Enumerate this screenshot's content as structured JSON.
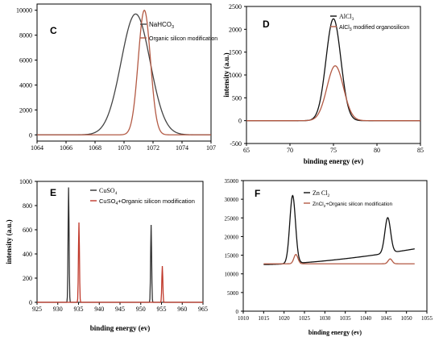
{
  "chart_data": [
    {
      "panel": "C",
      "type": "line",
      "xlabel": "",
      "ylabel": "",
      "xlim": [
        1064,
        1076
      ],
      "ylim": [
        -500,
        10500
      ],
      "x_ticks": [
        "1064",
        "1066",
        "1068",
        "1070",
        "1072",
        "1074",
        "107"
      ],
      "y_ticks": [
        "0",
        "2000",
        "4000",
        "6000",
        "8000",
        "10000"
      ],
      "legend_position": "top-right",
      "series": [
        {
          "name": "NaHCO3",
          "color": "#444444",
          "peaks": [
            {
              "center": 1070.8,
              "height": 9700,
              "sigma": 1.0
            }
          ],
          "baseline": 0
        },
        {
          "name": "Organic silicon modification",
          "color": "#b35a44",
          "peaks": [
            {
              "center": 1071.4,
              "height": 10000,
              "sigma": 0.42
            }
          ],
          "baseline": 0
        }
      ]
    },
    {
      "panel": "D",
      "type": "line",
      "xlabel": "binding energy (ev)",
      "ylabel": "intensity (a.u.)",
      "xlim": [
        65,
        85
      ],
      "ylim": [
        -500,
        2500
      ],
      "x_ticks": [
        "65",
        "70",
        "75",
        "80",
        "85"
      ],
      "y_ticks": [
        "-500",
        "0",
        "500",
        "1000",
        "1500",
        "2000",
        "2500"
      ],
      "legend_position": "top-right",
      "series": [
        {
          "name": "AlCl3",
          "color": "#111111",
          "peaks": [
            {
              "center": 75.0,
              "height": 2230,
              "sigma": 0.85
            }
          ],
          "baseline": 0
        },
        {
          "name": "AlCl3 modified organosilicon",
          "color": "#b35a44",
          "peaks": [
            {
              "center": 75.2,
              "height": 1200,
              "sigma": 0.95
            }
          ],
          "baseline": 0
        }
      ]
    },
    {
      "panel": "E",
      "type": "line",
      "xlabel": "binding energy (ev)",
      "ylabel": "intensity (a.u.)",
      "xlim": [
        925,
        965
      ],
      "ylim": [
        0,
        1000
      ],
      "x_ticks": [
        "925",
        "930",
        "935",
        "940",
        "945",
        "950",
        "955",
        "960",
        "965"
      ],
      "y_ticks": [
        "0",
        "200",
        "400",
        "600",
        "800",
        "1000"
      ],
      "legend_position": "top-center",
      "series": [
        {
          "name": "CuSO4",
          "color": "#333333",
          "peaks": [
            {
              "center": 932.6,
              "height": 950,
              "sigma": 0.12
            },
            {
              "center": 952.5,
              "height": 640,
              "sigma": 0.12
            }
          ],
          "baseline": 0
        },
        {
          "name": "CuSO4+Organic silicon modification",
          "color": "#c0392b",
          "peaks": [
            {
              "center": 935.1,
              "height": 660,
              "sigma": 0.12
            },
            {
              "center": 955.2,
              "height": 300,
              "sigma": 0.12
            }
          ],
          "baseline": 0
        }
      ]
    },
    {
      "panel": "F",
      "type": "line",
      "xlabel": "binding energy (ev)",
      "ylabel": "",
      "xlim": [
        1010,
        1055
      ],
      "ylim": [
        0,
        35000
      ],
      "x_ticks": [
        "1010",
        "1015",
        "1020",
        "1025",
        "1030",
        "1035",
        "1040",
        "1045",
        "1050",
        "1055"
      ],
      "y_ticks": [
        "0",
        "5000",
        "10000",
        "15000",
        "20000",
        "25000",
        "30000",
        "35000"
      ],
      "legend_position": "top-center",
      "series": [
        {
          "name": "Zn Cl2",
          "color": "#111111",
          "peaks": [
            {
              "center": 1022.1,
              "height": 18200,
              "sigma": 0.7
            },
            {
              "center": 1045.4,
              "height": 9500,
              "sigma": 0.7
            }
          ],
          "baseline": 12500,
          "baseline_end": 16700,
          "x_range": [
            1015,
            1052
          ]
        },
        {
          "name": "ZnCl2+Organic silicon modification",
          "color": "#b35a44",
          "peaks": [
            {
              "center": 1022.9,
              "height": 2500,
              "sigma": 0.5
            },
            {
              "center": 1046.0,
              "height": 1300,
              "sigma": 0.5
            }
          ],
          "baseline": 12700,
          "x_range": [
            1015,
            1052
          ]
        }
      ]
    }
  ],
  "legend_text": {
    "c_s1_main": "NaHCO",
    "c_s1_sub": "3",
    "c_s2": "Organic  silicon modification",
    "d_s1_main": "AlCl",
    "d_s1_sub": "3",
    "d_s2_main": "AlCl",
    "d_s2_sub": "3",
    "d_s2_rest": " modified organosilicon",
    "e_s1_main": "CuSO",
    "e_s1_sub": "4",
    "e_s2_main": "CuSO",
    "e_s2_sub": "4",
    "e_s2_rest": "+Organic silicon modification",
    "f_s1_main": "Zn Cl",
    "f_s1_sub": "2",
    "f_s2_main": "ZnCl",
    "f_s2_sub": "2",
    "f_s2_rest": "+Organic silicon modification"
  }
}
